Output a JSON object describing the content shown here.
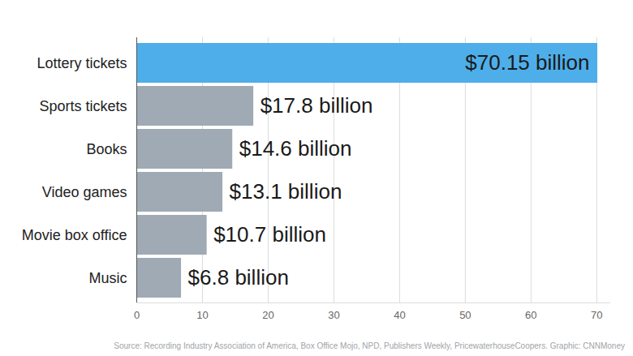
{
  "chart_data": {
    "type": "bar",
    "orientation": "horizontal",
    "categories": [
      "Lottery tickets",
      "Sports tickets",
      "Books",
      "Video games",
      "Movie box office",
      "Music"
    ],
    "values": [
      70.15,
      17.8,
      14.6,
      13.1,
      10.7,
      6.8
    ],
    "value_labels": [
      "$70.15 billion",
      "$17.8 billion",
      "$14.6 billion",
      "$13.1 billion",
      "$10.7 billion",
      "$6.8 billion"
    ],
    "colors": [
      "#4eaee9",
      "#9faab5",
      "#9faab5",
      "#9faab5",
      "#9faab5",
      "#9faab5"
    ],
    "xlim": [
      0,
      72
    ],
    "xticks": [
      0,
      10,
      20,
      30,
      40,
      50,
      60,
      70
    ],
    "grid": true,
    "data_labels": true,
    "source": "Source: Recording Industry Association of America, Box Office Mojo, NPD, Publishers Weekly, PricewaterhouseCoopers. Graphic: CNNMoney"
  }
}
